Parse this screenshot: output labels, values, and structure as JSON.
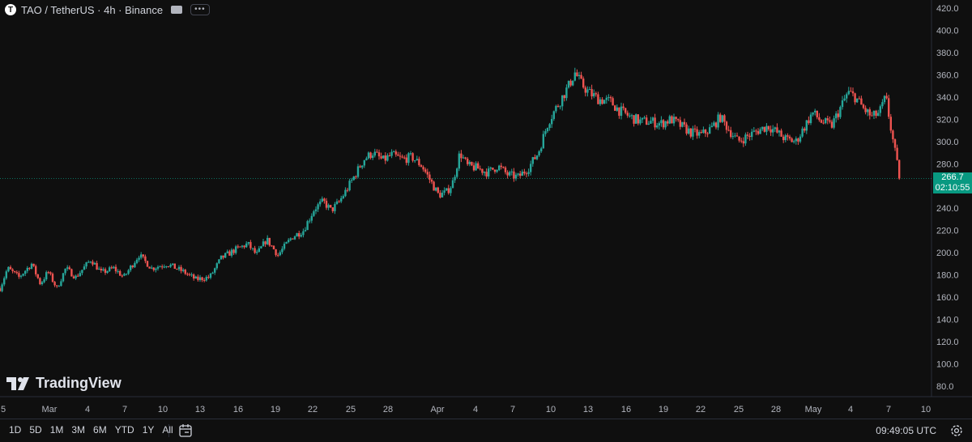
{
  "symbol": {
    "icon_letter": "T",
    "title": "TAO / TetherUS · 4h · Binance",
    "more": "•••"
  },
  "colors": {
    "background": "#0f0f0f",
    "up": "#26a69a",
    "down": "#ef5350",
    "last_price": "#089981",
    "axis_text": "#b2b5be"
  },
  "price_label": {
    "value": "266.7",
    "countdown": "02:10:55"
  },
  "logo": {
    "text": "TradingView"
  },
  "bottom_bar": {
    "timeframes": [
      "1D",
      "5D",
      "1M",
      "3M",
      "6M",
      "YTD",
      "1Y",
      "All"
    ],
    "clock": "09:49:05 UTC"
  },
  "icons": [
    "calendar-range-icon",
    "gear-icon",
    "tradingview-logo-icon",
    "flag-icon"
  ],
  "chart_data": {
    "type": "candlestick",
    "title": "TAO / TetherUS · 4h · Binance",
    "ylim": [
      80,
      420
    ],
    "yticks": [
      "420.0",
      "400.0",
      "380.0",
      "360.0",
      "340.0",
      "320.0",
      "300.0",
      "280.0",
      "260.0",
      "240.0",
      "220.0",
      "200.0",
      "180.0",
      "160.0",
      "140.0",
      "120.0",
      "100.0",
      "80.0"
    ],
    "xticks": [
      "5",
      "Mar",
      "4",
      "7",
      "10",
      "13",
      "16",
      "19",
      "22",
      "25",
      "28",
      "Apr",
      "4",
      "7",
      "10",
      "13",
      "16",
      "19",
      "22",
      "25",
      "28",
      "May",
      "4",
      "7",
      "10"
    ],
    "last_price": 266.7,
    "grid": false,
    "series": [
      {
        "day": 0.0,
        "price": 168
      },
      {
        "day": 0.6,
        "price": 186
      },
      {
        "day": 1.5,
        "price": 178
      },
      {
        "day": 2.5,
        "price": 190
      },
      {
        "day": 3.2,
        "price": 172
      },
      {
        "day": 3.8,
        "price": 183
      },
      {
        "day": 4.5,
        "price": 168
      },
      {
        "day": 5.2,
        "price": 186
      },
      {
        "day": 6.0,
        "price": 178
      },
      {
        "day": 7.2,
        "price": 194
      },
      {
        "day": 8.0,
        "price": 182
      },
      {
        "day": 9.0,
        "price": 186
      },
      {
        "day": 9.8,
        "price": 178
      },
      {
        "day": 11.0,
        "price": 198
      },
      {
        "day": 12.0,
        "price": 186
      },
      {
        "day": 13.2,
        "price": 190
      },
      {
        "day": 14.5,
        "price": 183
      },
      {
        "day": 15.5,
        "price": 176
      },
      {
        "day": 16.6,
        "price": 178
      },
      {
        "day": 17.5,
        "price": 195
      },
      {
        "day": 18.5,
        "price": 202
      },
      {
        "day": 19.6,
        "price": 208
      },
      {
        "day": 20.3,
        "price": 198
      },
      {
        "day": 21.1,
        "price": 212
      },
      {
        "day": 22.0,
        "price": 198
      },
      {
        "day": 23.1,
        "price": 214
      },
      {
        "day": 24.0,
        "price": 220
      },
      {
        "day": 24.9,
        "price": 240
      },
      {
        "day": 25.6,
        "price": 246
      },
      {
        "day": 26.2,
        "price": 238
      },
      {
        "day": 26.8,
        "price": 245
      },
      {
        "day": 27.5,
        "price": 258
      },
      {
        "day": 28.1,
        "price": 270
      },
      {
        "day": 28.8,
        "price": 284
      },
      {
        "day": 29.5,
        "price": 290
      },
      {
        "day": 30.3,
        "price": 283
      },
      {
        "day": 31.0,
        "price": 288
      },
      {
        "day": 31.8,
        "price": 284
      },
      {
        "day": 32.6,
        "price": 286
      },
      {
        "day": 33.4,
        "price": 278
      },
      {
        "day": 34.0,
        "price": 266
      },
      {
        "day": 34.7,
        "price": 252
      },
      {
        "day": 35.3,
        "price": 254
      },
      {
        "day": 35.8,
        "price": 262
      },
      {
        "day": 36.4,
        "price": 290
      },
      {
        "day": 37.0,
        "price": 278
      },
      {
        "day": 37.8,
        "price": 276
      },
      {
        "day": 38.6,
        "price": 272
      },
      {
        "day": 39.4,
        "price": 278
      },
      {
        "day": 40.2,
        "price": 270
      },
      {
        "day": 41.0,
        "price": 268
      },
      {
        "day": 41.8,
        "price": 276
      },
      {
        "day": 42.6,
        "price": 290
      },
      {
        "day": 43.4,
        "price": 318
      },
      {
        "day": 44.2,
        "price": 334
      },
      {
        "day": 45.0,
        "price": 350
      },
      {
        "day": 45.5,
        "price": 362
      },
      {
        "day": 46.0,
        "price": 352
      },
      {
        "day": 46.6,
        "price": 344
      },
      {
        "day": 47.4,
        "price": 338
      },
      {
        "day": 48.3,
        "price": 336
      },
      {
        "day": 49.0,
        "price": 328
      },
      {
        "day": 49.9,
        "price": 322
      },
      {
        "day": 50.7,
        "price": 318
      },
      {
        "day": 51.5,
        "price": 318
      },
      {
        "day": 52.3,
        "price": 316
      },
      {
        "day": 53.1,
        "price": 320
      },
      {
        "day": 53.9,
        "price": 314
      },
      {
        "day": 54.7,
        "price": 308
      },
      {
        "day": 55.5,
        "price": 306
      },
      {
        "day": 56.3,
        "price": 312
      },
      {
        "day": 57.0,
        "price": 322
      },
      {
        "day": 57.6,
        "price": 312
      },
      {
        "day": 58.4,
        "price": 300
      },
      {
        "day": 59.2,
        "price": 305
      },
      {
        "day": 60.0,
        "price": 310
      },
      {
        "day": 60.8,
        "price": 314
      },
      {
        "day": 61.5,
        "price": 308
      },
      {
        "day": 62.2,
        "price": 302
      },
      {
        "day": 63.0,
        "price": 300
      },
      {
        "day": 63.6,
        "price": 312
      },
      {
        "day": 64.3,
        "price": 326
      },
      {
        "day": 65.0,
        "price": 318
      },
      {
        "day": 65.8,
        "price": 314
      },
      {
        "day": 66.5,
        "price": 330
      },
      {
        "day": 67.1,
        "price": 344
      },
      {
        "day": 67.7,
        "price": 340
      },
      {
        "day": 68.3,
        "price": 330
      },
      {
        "day": 69.0,
        "price": 322
      },
      {
        "day": 69.6,
        "price": 326
      },
      {
        "day": 70.1,
        "price": 340
      },
      {
        "day": 70.5,
        "price": 312
      },
      {
        "day": 70.9,
        "price": 286
      },
      {
        "day": 71.2,
        "price": 266.7
      }
    ]
  }
}
